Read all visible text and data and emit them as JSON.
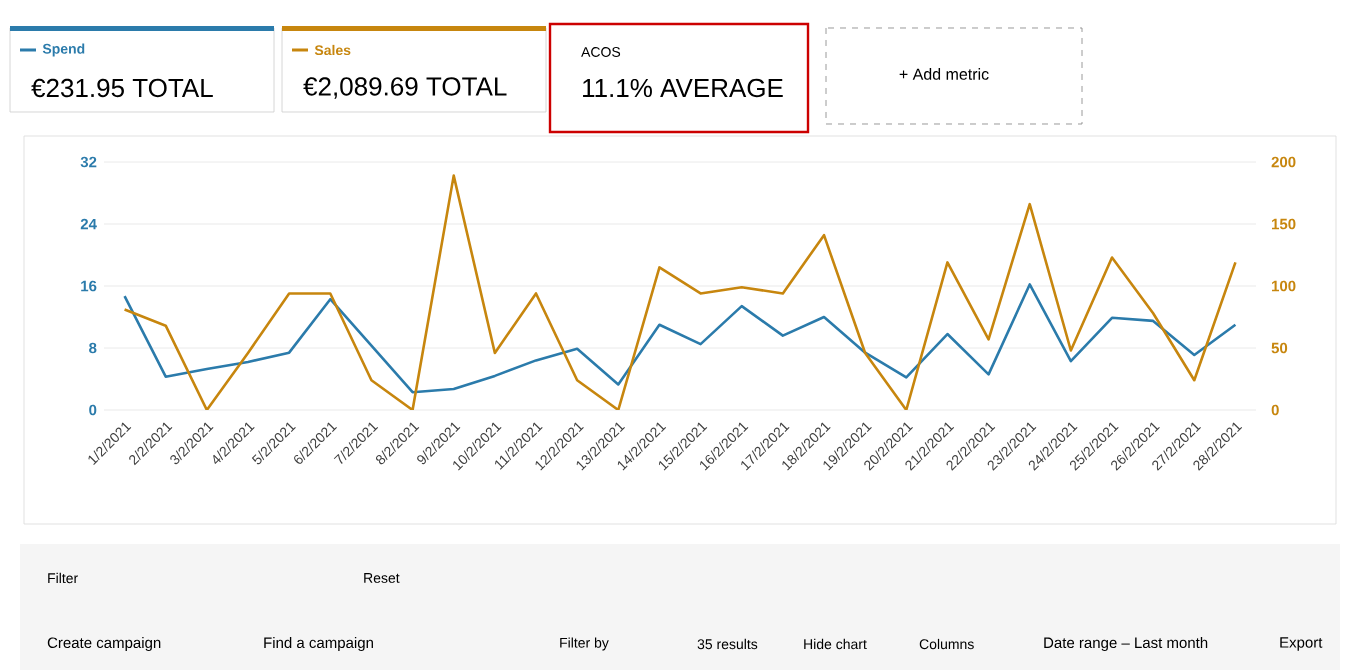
{
  "chart_data": {
    "type": "line",
    "categories": [
      "1/2/2021",
      "2/2/2021",
      "3/2/2021",
      "4/2/2021",
      "5/2/2021",
      "6/2/2021",
      "7/2/2021",
      "8/2/2021",
      "9/2/2021",
      "10/2/2021",
      "11/2/2021",
      "12/2/2021",
      "13/2/2021",
      "14/2/2021",
      "15/2/2021",
      "16/2/2021",
      "17/2/2021",
      "18/2/2021",
      "19/2/2021",
      "20/2/2021",
      "21/2/2021",
      "22/2/2021",
      "23/2/2021",
      "24/2/2021",
      "25/2/2021",
      "26/2/2021",
      "27/2/2021",
      "28/2/2021"
    ],
    "series": [
      {
        "name": "Spend",
        "color": "#2b7bab",
        "values": [
          14.7,
          4.3,
          5.3,
          6.2,
          7.4,
          14.3,
          8.3,
          2.3,
          2.7,
          4.4,
          6.4,
          7.9,
          3.3,
          11.0,
          8.5,
          13.4,
          9.6,
          12.0,
          7.4,
          4.2,
          9.8,
          4.6,
          16.2,
          6.3,
          11.9,
          11.5,
          7.1,
          11.0
        ]
      },
      {
        "name": "Sales",
        "color": "#c7860e",
        "axis": "y2",
        "values": [
          81,
          68,
          0,
          46,
          94,
          94,
          24,
          0,
          189,
          46,
          94,
          24,
          0,
          115,
          94,
          99,
          94,
          141,
          46,
          0,
          119,
          57,
          166,
          48,
          123,
          78,
          24,
          119
        ]
      }
    ],
    "ylim": [
      0,
      32
    ],
    "yticks": [
      0,
      8,
      16,
      24,
      32
    ],
    "y2lim": [
      0,
      200
    ],
    "y2ticks": [
      0,
      50,
      100,
      150,
      200
    ],
    "grid": "y",
    "legend": "top left",
    "annotations": [
      "€231.95 TOTAL",
      "€2,089.69 TOTAL",
      "ACOS",
      "11.1% AVERAGE",
      "+ Add metric",
      "Filter",
      "Reset",
      "Create campaign",
      "Find a campaign",
      "Filter by",
      "35 results",
      "Hide chart",
      "Columns",
      "Date range – Last month",
      "Export"
    ]
  }
}
